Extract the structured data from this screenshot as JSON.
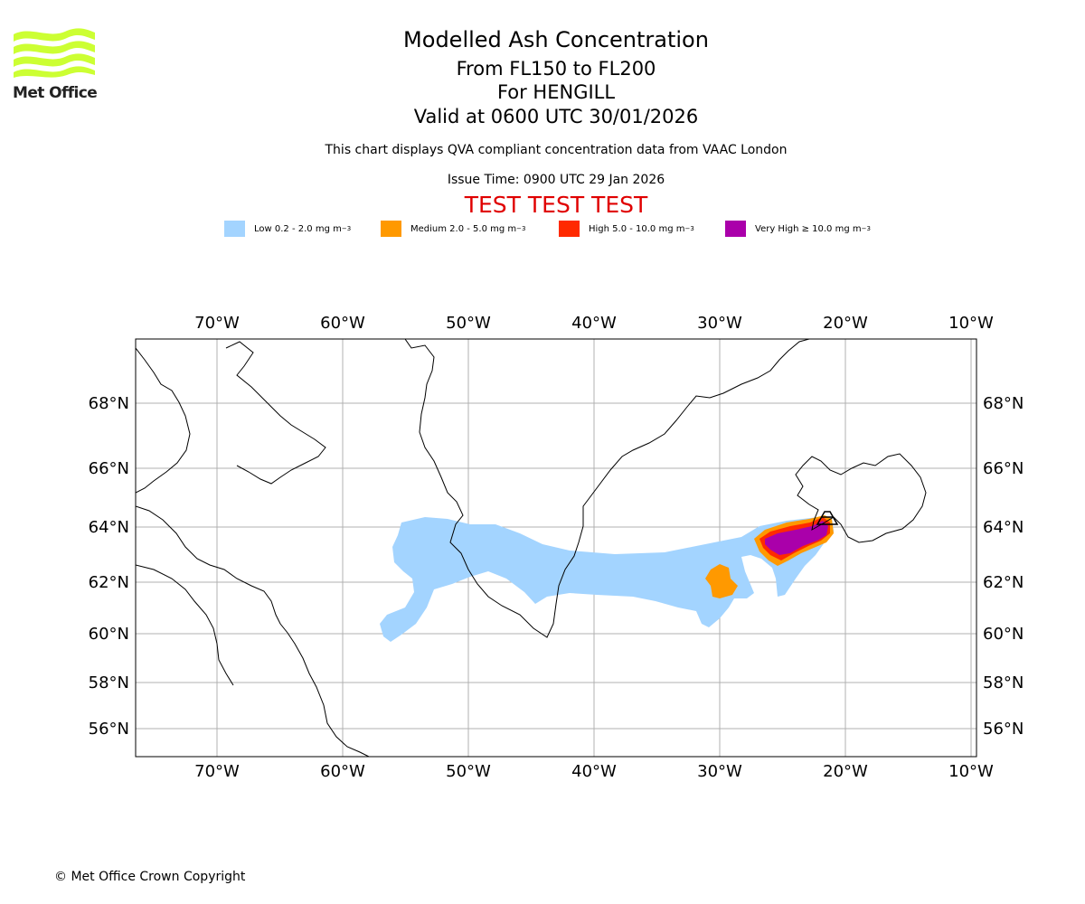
{
  "header": {
    "title": "Modelled Ash Concentration",
    "level_range": "From FL150 to FL200",
    "volcano": "For HENGILL",
    "valid_time": "Valid at 0600 UTC 30/01/2026",
    "subtitle": "This chart displays QVA compliant concentration data from VAAC London",
    "issue_time": "Issue Time: 0900 UTC 29 Jan 2026",
    "test_banner": "TEST TEST TEST"
  },
  "logo": {
    "text": "Met Office",
    "color": "#ccff33"
  },
  "legend": [
    {
      "label": "Low 0.2 - 2.0 mg m",
      "unit_sup": "−3",
      "color": "#a3d4ff"
    },
    {
      "label": "Medium 2.0 - 5.0 mg m",
      "unit_sup": "−3",
      "color": "#ff9900"
    },
    {
      "label": "High 5.0 - 10.0 mg m",
      "unit_sup": "−3",
      "color": "#ff2a00"
    },
    {
      "label": "Very High  ≥  10.0 mg m",
      "unit_sup": "−3",
      "color": "#aa00aa"
    }
  ],
  "map": {
    "lon_labels": [
      "70°W",
      "60°W",
      "50°W",
      "40°W",
      "30°W",
      "20°W",
      "10°W"
    ],
    "lat_labels": [
      "68°N",
      "66°N",
      "64°N",
      "62°N",
      "60°N",
      "58°N",
      "56°N"
    ],
    "gridlines": true
  },
  "footer": {
    "copyright": "© Met Office Crown Copyright"
  }
}
